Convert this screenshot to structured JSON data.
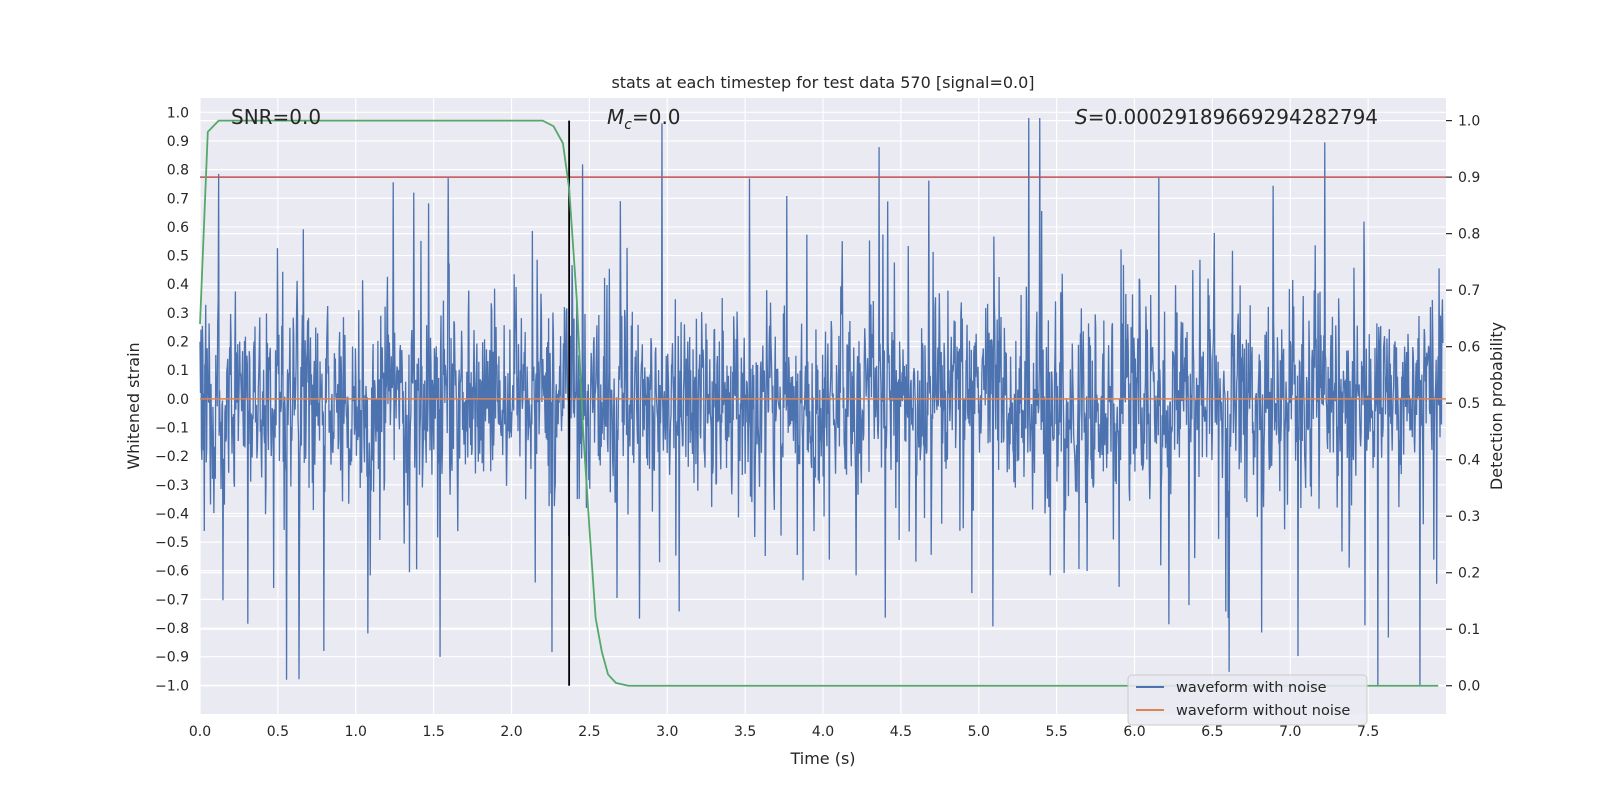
{
  "chart_data": {
    "type": "line",
    "title": "stats at each timestep for test data 570 [signal=0.0]",
    "xlabel": "Time (s)",
    "ylabel": "Whitened strain",
    "y2label": "Detection probability",
    "xlim": [
      0.0,
      8.0
    ],
    "ylim": [
      -1.1,
      1.05
    ],
    "y2lim": [
      -0.05,
      1.04
    ],
    "x_ticks": [
      "0.0",
      "0.5",
      "1.0",
      "1.5",
      "2.0",
      "2.5",
      "3.0",
      "3.5",
      "4.0",
      "4.5",
      "5.0",
      "5.5",
      "6.0",
      "6.5",
      "7.0",
      "7.5"
    ],
    "y_ticks": [
      "1.0",
      "0.9",
      "0.8",
      "0.7",
      "0.6",
      "0.5",
      "0.4",
      "0.3",
      "0.2",
      "0.1",
      "0.0",
      "−0.1",
      "−0.2",
      "−0.3",
      "−0.4",
      "−0.5",
      "−0.6",
      "−0.7",
      "−0.8",
      "−0.9",
      "−1.0"
    ],
    "y2_ticks": [
      "1.0",
      "0.9",
      "0.8",
      "0.7",
      "0.6",
      "0.5",
      "0.4",
      "0.3",
      "0.2",
      "0.1",
      "0.0"
    ],
    "annotations": {
      "snr": "SNR=0.0",
      "mc_symbol": "M",
      "mc_sub": "c",
      "mc_value": "=0.0",
      "s_symbol": "S",
      "s_value": "=0.00029189669294282794"
    },
    "threshold": 0.9,
    "event_time": 2.37,
    "series": [
      {
        "name": "waveform with noise",
        "color": "#4c72b0",
        "envelope": "whitened noise, amplitude roughly ±0.35 with spikes to ±1.0"
      },
      {
        "name": "waveform without noise",
        "color": "#dd8452",
        "value": 0.0
      },
      {
        "name": "detection probability",
        "color": "#55a868",
        "axis": "right",
        "points": [
          [
            0.0,
            0.64
          ],
          [
            0.05,
            0.98
          ],
          [
            0.12,
            1.0
          ],
          [
            2.2,
            1.0
          ],
          [
            2.27,
            0.99
          ],
          [
            2.33,
            0.96
          ],
          [
            2.37,
            0.88
          ],
          [
            2.42,
            0.68
          ],
          [
            2.46,
            0.45
          ],
          [
            2.5,
            0.28
          ],
          [
            2.54,
            0.12
          ],
          [
            2.58,
            0.06
          ],
          [
            2.62,
            0.02
          ],
          [
            2.67,
            0.005
          ],
          [
            2.75,
            0.0
          ],
          [
            7.95,
            0.0
          ]
        ]
      },
      {
        "name": "threshold",
        "color": "#c44e52",
        "axis": "right",
        "value": 0.9
      }
    ],
    "legend": {
      "position": "lower-right",
      "entries": [
        {
          "label": "waveform with noise",
          "color": "#4c72b0"
        },
        {
          "label": "waveform without noise",
          "color": "#dd8452"
        }
      ]
    }
  },
  "colors": {
    "plot_bg": "#eaeaf2",
    "grid": "#ffffff",
    "noise": "#4c72b0",
    "clean": "#dd8452",
    "prob": "#55a868",
    "threshold": "#c44e52",
    "event_line": "#000000"
  }
}
